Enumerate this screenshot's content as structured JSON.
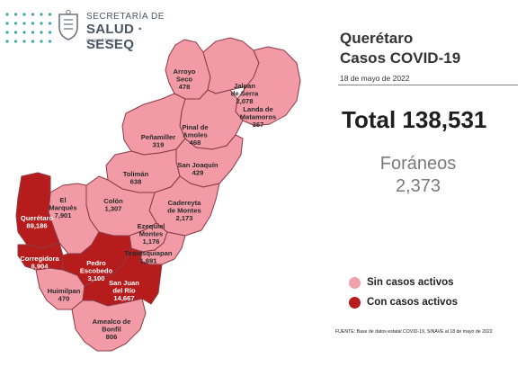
{
  "header": {
    "org_line1": "SECRETARÍA DE",
    "org_line2": "SALUD · SESEQ",
    "org_line3": "QUERÉTARO"
  },
  "title": {
    "line1": "Querétaro",
    "line2": "Casos COVID-19"
  },
  "date": "18 de mayo de 2022",
  "total_text": "Total 138,531",
  "foraneos": {
    "label": "Foráneos",
    "value": "2,373"
  },
  "legend": [
    {
      "label": "Sin casos activos",
      "color": "#f0a2ac"
    },
    {
      "label": "Con casos activos",
      "color": "#b71c1c"
    }
  ],
  "source": "FUENTE:  Base de datos estatal  COVID-19,  SINAVE  al 18 de mayo de 2022",
  "colors": {
    "no_active": "#f29aa6",
    "active": "#b71c1c",
    "border": "#8a3a45",
    "dots": "#3aa6a6"
  },
  "municipalities": [
    {
      "name": "Arroyo Seco",
      "name_lines": [
        "Arroyo",
        "Seco"
      ],
      "cases": "478",
      "active": false
    },
    {
      "name": "Jalpan de Serra",
      "name_lines": [
        "Jalpan",
        "de Serra"
      ],
      "cases": "2,078",
      "active": false
    },
    {
      "name": "Landa de Matamoros",
      "name_lines": [
        "Landa de",
        "Matamoros"
      ],
      "cases": "367",
      "active": false
    },
    {
      "name": "Pinal de Amoles",
      "name_lines": [
        "Pinal de",
        "Amoles"
      ],
      "cases": "468",
      "active": false
    },
    {
      "name": "Peñamiller",
      "name_lines": [
        "Peñamiller"
      ],
      "cases": "319",
      "active": false
    },
    {
      "name": "San Joaquín",
      "name_lines": [
        "San Joaquín"
      ],
      "cases": "429",
      "active": false
    },
    {
      "name": "Tolimán",
      "name_lines": [
        "Tolimán"
      ],
      "cases": "638",
      "active": false
    },
    {
      "name": "Cadereyta de Montes",
      "name_lines": [
        "Cadereyta",
        "de Montes"
      ],
      "cases": "2,173",
      "active": false
    },
    {
      "name": "Colón",
      "name_lines": [
        "Colón"
      ],
      "cases": "1,307",
      "active": false
    },
    {
      "name": "El Marqués",
      "name_lines": [
        "El",
        "Marqués"
      ],
      "cases": "7,901",
      "active": false
    },
    {
      "name": "Querétaro",
      "name_lines": [
        "Querétaro"
      ],
      "cases": "89,186",
      "active": true
    },
    {
      "name": "Ezequiel Montes",
      "name_lines": [
        "Ezequiel",
        "Montes"
      ],
      "cases": "1,176",
      "active": false
    },
    {
      "name": "Tequisquiapan",
      "name_lines": [
        "Tequisquiapan"
      ],
      "cases": "1,691",
      "active": false
    },
    {
      "name": "Corregidora",
      "name_lines": [
        "Corregidora"
      ],
      "cases": "8,904",
      "active": true
    },
    {
      "name": "Pedro Escobedo",
      "name_lines": [
        "Pedro",
        "Escobedo"
      ],
      "cases": "3,100",
      "active": true
    },
    {
      "name": "San Juan del Río",
      "name_lines": [
        "San Juan",
        "del Río"
      ],
      "cases": "14,667",
      "active": true
    },
    {
      "name": "Huimilpan",
      "name_lines": [
        "Huimilpan"
      ],
      "cases": "470",
      "active": false
    },
    {
      "name": "Amealco de Bonfil",
      "name_lines": [
        "Amealco de",
        "Bonfil"
      ],
      "cases": "806",
      "active": false
    }
  ]
}
